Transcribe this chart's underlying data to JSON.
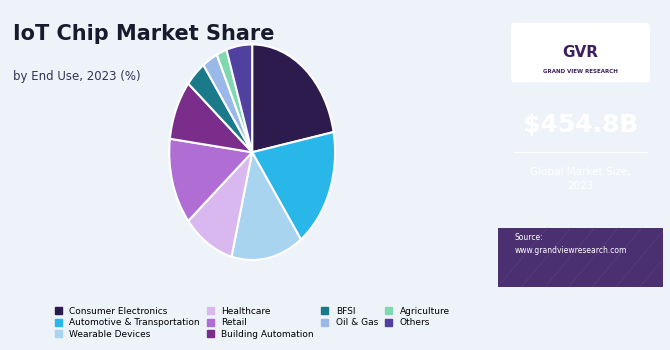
{
  "title": "IoT Chip Market Share",
  "subtitle": "by End Use, 2023 (%)",
  "market_size": "$454.8B",
  "market_label": "Global Market Size,\n2023",
  "source": "Source:\nwww.grandviewresearch.com",
  "segments": [
    {
      "label": "Consumer Electronics",
      "value": 22,
      "color": "#2d1b4e"
    },
    {
      "label": "Automotive & Transportation",
      "value": 18,
      "color": "#29b6e8"
    },
    {
      "label": "Wearable Devices",
      "value": 14,
      "color": "#a8d4f0"
    },
    {
      "label": "Healthcare",
      "value": 10,
      "color": "#d9b8f0"
    },
    {
      "label": "Retail",
      "value": 13,
      "color": "#b06ed4"
    },
    {
      "label": "Building Automation",
      "value": 9,
      "color": "#7b2d8b"
    },
    {
      "label": "BFSI",
      "value": 4,
      "color": "#1a7a8a"
    },
    {
      "label": "Oil & Gas",
      "value": 3,
      "color": "#9ab8e8"
    },
    {
      "label": "Agriculture",
      "value": 2,
      "color": "#80d8b0"
    },
    {
      "label": "Others",
      "value": 5,
      "color": "#5040a0"
    }
  ],
  "background_color": "#eef3fa",
  "right_panel_color": "#3b1f5e",
  "title_color": "#1a1a2e",
  "subtitle_color": "#333355"
}
